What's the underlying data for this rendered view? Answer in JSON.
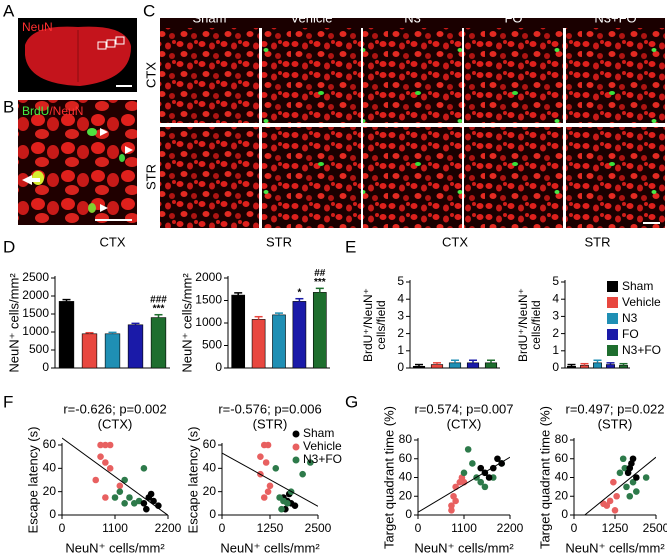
{
  "panels": [
    "A",
    "B",
    "C",
    "D",
    "E",
    "F",
    "G"
  ],
  "images": {
    "A_label": "NeuN",
    "B_label": [
      "BrdU",
      "/NeuN"
    ],
    "C_columns": [
      "Sham",
      "Vehicle",
      "N3",
      "FO",
      "N3+FO"
    ],
    "C_rows": [
      "CTX",
      "STR"
    ]
  },
  "chart_data": [
    {
      "type": "bar",
      "title": "CTX",
      "ylabel": "NeuN⁺ cells/mm²",
      "values": [
        1850,
        950,
        950,
        1200,
        1400
      ],
      "errors": [
        50,
        30,
        40,
        40,
        80
      ],
      "colors": [
        "#000000",
        "#e8473f",
        "#1f8fb4",
        "#1a1aa8",
        "#1e6e2e"
      ],
      "annotations": [
        [],
        [],
        [],
        [],
        [
          "###",
          "***"
        ]
      ],
      "ylim": [
        0,
        2500
      ],
      "yticks": [
        0,
        500,
        1000,
        1500,
        2000,
        2500
      ]
    },
    {
      "type": "bar",
      "title": "STR",
      "ylabel": "NeuN⁺ cells/mm²",
      "values": [
        1620,
        1080,
        1180,
        1480,
        1680
      ],
      "errors": [
        50,
        60,
        40,
        60,
        90
      ],
      "colors": [
        "#000000",
        "#e8473f",
        "#1f8fb4",
        "#1a1aa8",
        "#1e6e2e"
      ],
      "annotations": [
        [],
        [],
        [],
        [
          "*"
        ],
        [
          "##",
          "***"
        ]
      ],
      "ylim": [
        0,
        2000
      ],
      "yticks": [
        0,
        500,
        1000,
        1500,
        2000
      ]
    },
    {
      "type": "bar",
      "title": "CTX",
      "ylabel": [
        "BrdU⁺/NeuN⁺",
        "cells/field"
      ],
      "values": [
        0.1,
        0.2,
        0.3,
        0.3,
        0.3
      ],
      "errors": [
        0.1,
        0.1,
        0.15,
        0.15,
        0.15
      ],
      "colors": [
        "#000000",
        "#e8473f",
        "#1f8fb4",
        "#1a1aa8",
        "#1e6e2e"
      ],
      "ylim": [
        0,
        5
      ],
      "yticks": [
        0,
        1,
        2,
        3,
        4,
        5
      ]
    },
    {
      "type": "bar",
      "title": "STR",
      "ylabel": [
        "BrdU⁺/NeuN⁺",
        "cells/field"
      ],
      "categories": [
        "Sham",
        "Vehicle",
        "N3",
        "FO",
        "N3+FO"
      ],
      "legend": true,
      "values": [
        0.1,
        0.15,
        0.3,
        0.2,
        0.15
      ],
      "errors": [
        0.1,
        0.1,
        0.15,
        0.1,
        0.1
      ],
      "colors": [
        "#000000",
        "#e8473f",
        "#1f8fb4",
        "#1a1aa8",
        "#1e6e2e"
      ],
      "ylim": [
        0,
        5
      ],
      "yticks": [
        0,
        1,
        2,
        3,
        4,
        5
      ]
    },
    {
      "type": "scatter",
      "title": "r=-0.626; p=0.002",
      "subtitle": "(CTX)",
      "xlabel": "NeuN⁺ cells/mm²",
      "ylabel": "Escape latency (s)",
      "xlim": [
        0,
        2200
      ],
      "xticks": [
        0,
        1100,
        2200
      ],
      "ylim": [
        0,
        60
      ],
      "yticks": [
        0,
        20,
        40,
        60
      ],
      "series": [
        {
          "color": "#e86060",
          "x": [
            800,
            900,
            1000,
            800,
            900,
            1000,
            700,
            1200,
            900
          ],
          "values": [
            60,
            60,
            60,
            50,
            45,
            40,
            30,
            25,
            15
          ]
        },
        {
          "color": "#2d7a4a",
          "x": [
            1100,
            1200,
            1300,
            1400,
            1500,
            1600,
            1700,
            1300
          ],
          "values": [
            15,
            20,
            10,
            15,
            10,
            12,
            40,
            30
          ]
        },
        {
          "color": "#000000",
          "x": [
            1700,
            1800,
            1900,
            2000,
            1750,
            1850
          ],
          "values": [
            10,
            15,
            12,
            8,
            5,
            18
          ]
        }
      ]
    },
    {
      "type": "scatter",
      "title": "r=-0.576; p=0.006",
      "subtitle": "(STR)",
      "xlabel": "NeuN⁺ cells/mm²",
      "ylabel": "Escape latency (s)",
      "legend": true,
      "xlim": [
        0,
        2500
      ],
      "xticks": [
        0,
        1250,
        2500
      ],
      "ylim": [
        0,
        60
      ],
      "yticks": [
        0,
        20,
        40,
        60
      ],
      "series": [
        {
          "name": "Sham",
          "color": "#000000",
          "x": [
            1600,
            1700,
            1800,
            1900,
            1650,
            1750
          ],
          "values": [
            15,
            12,
            10,
            8,
            5,
            18
          ]
        },
        {
          "name": "Vehicle",
          "color": "#e86060",
          "x": [
            1100,
            1200,
            1000,
            1150,
            1000,
            1200,
            1100,
            1250
          ],
          "values": [
            60,
            60,
            50,
            45,
            35,
            20,
            15,
            25
          ]
        },
        {
          "name": "N3+FO",
          "color": "#2d7a4a",
          "x": [
            1400,
            1500,
            1600,
            1700,
            1800,
            2100,
            1550,
            2300
          ],
          "values": [
            40,
            15,
            12,
            10,
            20,
            35,
            5,
            45
          ]
        }
      ]
    },
    {
      "type": "scatter",
      "title": "r=0.574; p=0.007",
      "subtitle": "(CTX)",
      "xlabel": "NeuN⁺ cells/mm²",
      "ylabel": "Target quadrant time (%)",
      "xlim": [
        0,
        2200
      ],
      "xticks": [
        0,
        1100,
        2200
      ],
      "ylim": [
        0,
        80
      ],
      "yticks": [
        0,
        20,
        40,
        60,
        80
      ],
      "series": [
        {
          "color": "#e86060",
          "x": [
            800,
            900,
            850,
            1000,
            900,
            1050,
            800,
            1100
          ],
          "values": [
            10,
            15,
            20,
            35,
            30,
            40,
            5,
            35
          ]
        },
        {
          "color": "#2d7a4a",
          "x": [
            1100,
            1300,
            1400,
            1500,
            1600,
            1800,
            2000,
            1200
          ],
          "values": [
            45,
            55,
            40,
            35,
            30,
            40,
            55,
            70
          ]
        },
        {
          "color": "#000000",
          "x": [
            1500,
            1600,
            1700,
            1800,
            1900,
            2000
          ],
          "values": [
            50,
            45,
            40,
            50,
            60,
            55
          ]
        }
      ]
    },
    {
      "type": "scatter",
      "title": "r=0.497; p=0.022",
      "subtitle": "(STR)",
      "xlabel": "NeuN⁺ cells/mm²",
      "ylabel": "Target quadrant time (%)",
      "xlim": [
        0,
        2500
      ],
      "xticks": [
        0,
        1250,
        2500
      ],
      "ylim": [
        0,
        80
      ],
      "yticks": [
        0,
        20,
        40,
        60,
        80
      ],
      "series": [
        {
          "color": "#e86060",
          "x": [
            1000,
            1100,
            1200,
            900,
            1300,
            1250
          ],
          "values": [
            10,
            15,
            35,
            12,
            20,
            5
          ]
        },
        {
          "color": "#2d7a4a",
          "x": [
            1400,
            1500,
            1600,
            1700,
            1800,
            2200,
            1550,
            1900
          ],
          "values": [
            45,
            60,
            30,
            20,
            35,
            40,
            50,
            25
          ]
        },
        {
          "color": "#000000",
          "x": [
            1700,
            1750,
            1800,
            1650,
            1900
          ],
          "values": [
            50,
            55,
            60,
            45,
            40
          ]
        }
      ]
    }
  ]
}
